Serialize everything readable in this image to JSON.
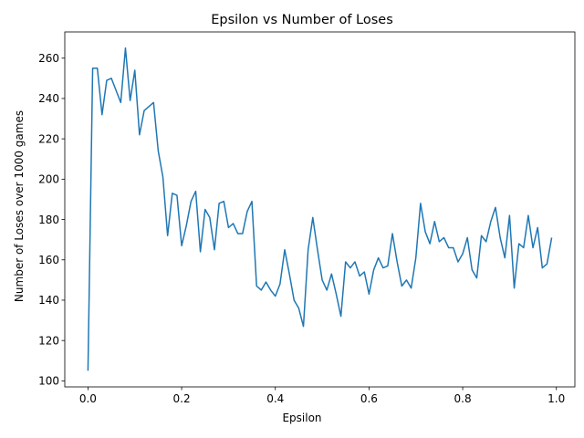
{
  "chart_data": {
    "type": "line",
    "title": "Epsilon vs Number of Loses",
    "xlabel": "Epsilon",
    "ylabel": "Number of Loses over 1000 games",
    "xlim": [
      -0.0495,
      1.0395
    ],
    "ylim": [
      97,
      273
    ],
    "xticks": [
      0.0,
      0.2,
      0.4,
      0.6,
      0.8,
      1.0
    ],
    "xtick_labels": [
      "0.0",
      "0.2",
      "0.4",
      "0.6",
      "0.8",
      "1.0"
    ],
    "yticks": [
      100,
      120,
      140,
      160,
      180,
      200,
      220,
      240,
      260
    ],
    "ytick_labels": [
      "100",
      "120",
      "140",
      "160",
      "180",
      "200",
      "220",
      "240",
      "260"
    ],
    "grid": false,
    "line_color": "#1f77b4",
    "series": [
      {
        "x": [
          0.0,
          0.01,
          0.02,
          0.03,
          0.04,
          0.05,
          0.06,
          0.07,
          0.08,
          0.09,
          0.1,
          0.11,
          0.12,
          0.13,
          0.14,
          0.15,
          0.16,
          0.17,
          0.18,
          0.19,
          0.2,
          0.21,
          0.22,
          0.23,
          0.24,
          0.25,
          0.26,
          0.27,
          0.28,
          0.29,
          0.3,
          0.31,
          0.32,
          0.33,
          0.34,
          0.35,
          0.36,
          0.37,
          0.38,
          0.39,
          0.4,
          0.41,
          0.42,
          0.43,
          0.44,
          0.45,
          0.46,
          0.47,
          0.48,
          0.49,
          0.5,
          0.51,
          0.52,
          0.53,
          0.54,
          0.55,
          0.56,
          0.57,
          0.58,
          0.59,
          0.6,
          0.61,
          0.62,
          0.63,
          0.64,
          0.65,
          0.66,
          0.67,
          0.68,
          0.69,
          0.7,
          0.71,
          0.72,
          0.73,
          0.74,
          0.75,
          0.76,
          0.77,
          0.78,
          0.79,
          0.8,
          0.81,
          0.82,
          0.83,
          0.84,
          0.85,
          0.86,
          0.87,
          0.88,
          0.89,
          0.9,
          0.91,
          0.92,
          0.93,
          0.94,
          0.95,
          0.96,
          0.97,
          0.98,
          0.99
        ],
        "values": [
          105,
          255,
          255,
          232,
          249,
          250,
          244,
          238,
          265,
          239,
          254,
          222,
          234,
          236,
          238,
          214,
          201,
          172,
          193,
          192,
          167,
          177,
          189,
          194,
          164,
          185,
          181,
          165,
          188,
          189,
          176,
          178,
          173,
          173,
          184,
          189,
          147,
          145,
          149,
          145,
          142,
          148,
          165,
          153,
          140,
          136,
          127,
          165,
          181,
          165,
          150,
          145,
          153,
          143,
          132,
          159,
          156,
          159,
          152,
          154,
          143,
          155,
          161,
          156,
          157,
          173,
          159,
          147,
          150,
          146,
          161,
          188,
          174,
          168,
          179,
          169,
          171,
          166,
          166,
          159,
          163,
          171,
          155,
          151,
          172,
          169,
          179,
          186,
          171,
          161,
          182,
          146,
          168,
          166,
          182,
          166,
          176,
          156,
          158,
          171
        ]
      }
    ]
  }
}
